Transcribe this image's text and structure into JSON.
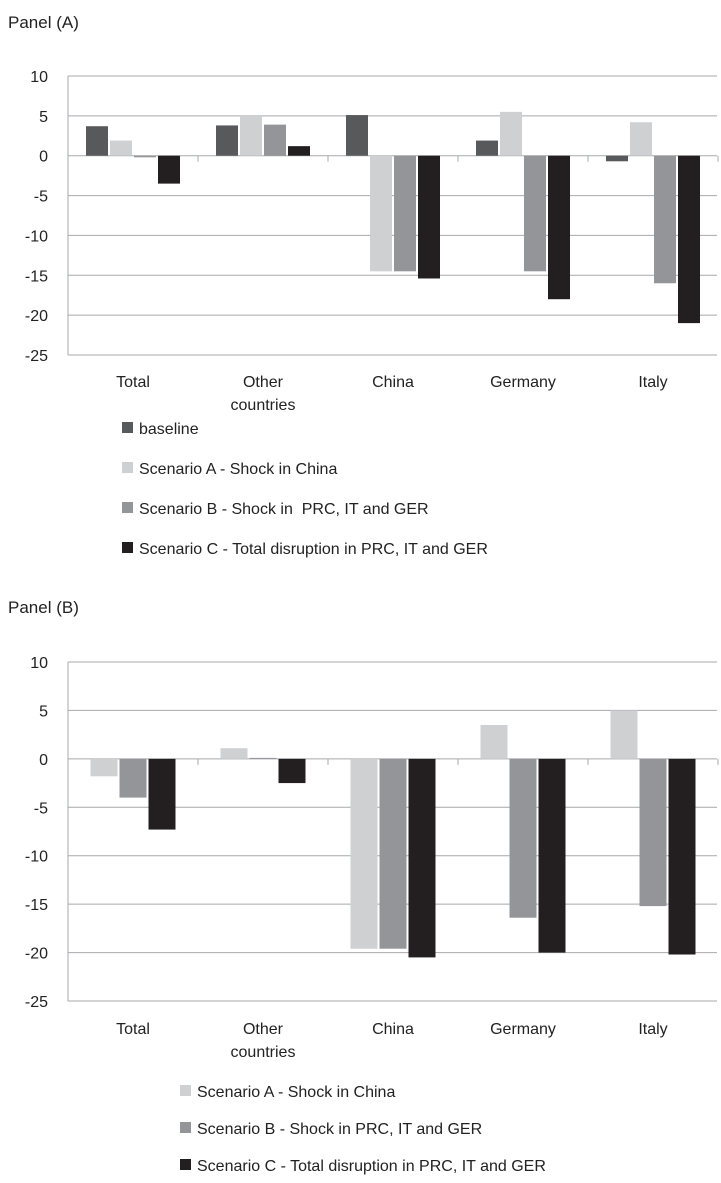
{
  "chart_data": [
    {
      "type": "bar",
      "title": "Panel (A)",
      "categories": [
        "Total",
        "Other countries",
        "China",
        "Germany",
        "Italy"
      ],
      "ylim": [
        -25,
        10
      ],
      "yticks": [
        10,
        5,
        0,
        -5,
        -10,
        -15,
        -20,
        -25
      ],
      "grid": true,
      "legend_position": "bottom",
      "series": [
        {
          "name": "baseline",
          "color": "#58595b",
          "values": [
            3.7,
            3.8,
            5.1,
            1.9,
            -0.7
          ]
        },
        {
          "name": "Scenario A - Shock in China",
          "color": "#cfd0d2",
          "values": [
            1.9,
            5.0,
            -14.5,
            5.5,
            4.2
          ]
        },
        {
          "name": "Scenario B - Shock in  PRC, IT and GER",
          "color": "#939598",
          "values": [
            -0.2,
            3.9,
            -14.5,
            -14.5,
            -16.0
          ]
        },
        {
          "name": "Scenario C - Total disruption in PRC, IT and GER",
          "color": "#231f20",
          "values": [
            -3.5,
            1.2,
            -15.4,
            -18.0,
            -21.0
          ]
        }
      ]
    },
    {
      "type": "bar",
      "title": "Panel (B)",
      "categories": [
        "Total",
        "Other countries",
        "China",
        "Germany",
        "Italy"
      ],
      "ylim": [
        -25,
        10
      ],
      "yticks": [
        10,
        5,
        0,
        -5,
        -10,
        -15,
        -20,
        -25
      ],
      "grid": true,
      "legend_position": "bottom",
      "series": [
        {
          "name": "Scenario A - Shock in China",
          "color": "#cfd0d2",
          "values": [
            -1.8,
            1.1,
            -19.6,
            3.5,
            5.0
          ]
        },
        {
          "name": "Scenario B - Shock in PRC, IT and GER",
          "color": "#939598",
          "values": [
            -4.0,
            0.1,
            -19.6,
            -16.4,
            -15.2
          ]
        },
        {
          "name": "Scenario C - Total disruption in PRC, IT and GER",
          "color": "#231f20",
          "values": [
            -7.3,
            -2.5,
            -20.5,
            -20.0,
            -20.2
          ]
        }
      ]
    }
  ]
}
